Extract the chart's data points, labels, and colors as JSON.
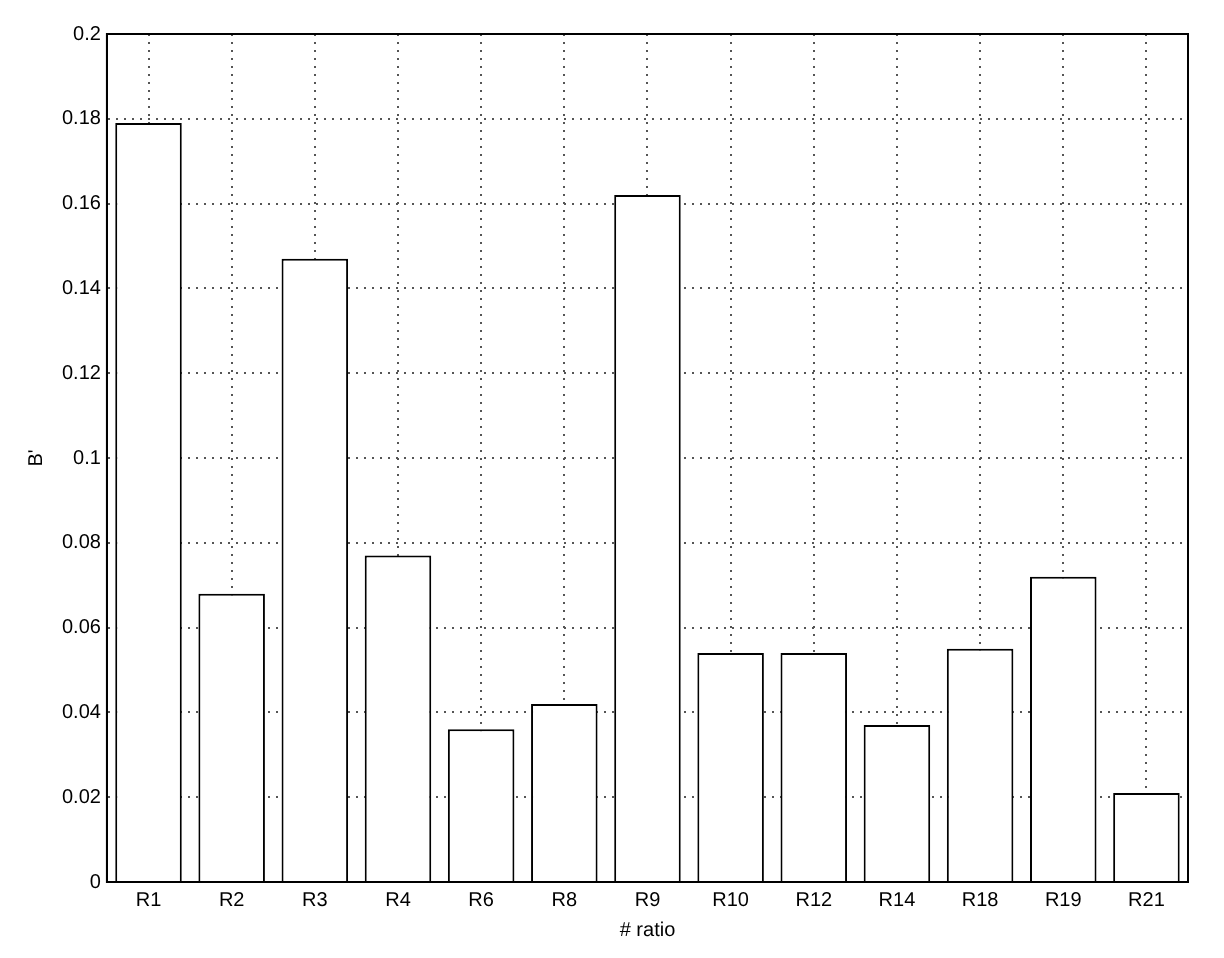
{
  "chart_data": {
    "type": "bar",
    "xlabel": "# ratio",
    "ylabel": "B'",
    "categories": [
      "R1",
      "R2",
      "R3",
      "R4",
      "R6",
      "R8",
      "R9",
      "R10",
      "R12",
      "R14",
      "R18",
      "R19",
      "R21"
    ],
    "values": [
      0.179,
      0.068,
      0.147,
      0.077,
      0.036,
      0.042,
      0.162,
      0.054,
      0.054,
      0.037,
      0.055,
      0.072,
      0.021
    ],
    "color": "#ffffff",
    "ylim": [
      0,
      0.2
    ],
    "yticks": [
      0,
      0.02,
      0.04,
      0.06,
      0.08,
      0.1,
      0.12,
      0.14,
      0.16,
      0.18,
      0.2
    ],
    "grid": true,
    "legend": false
  }
}
